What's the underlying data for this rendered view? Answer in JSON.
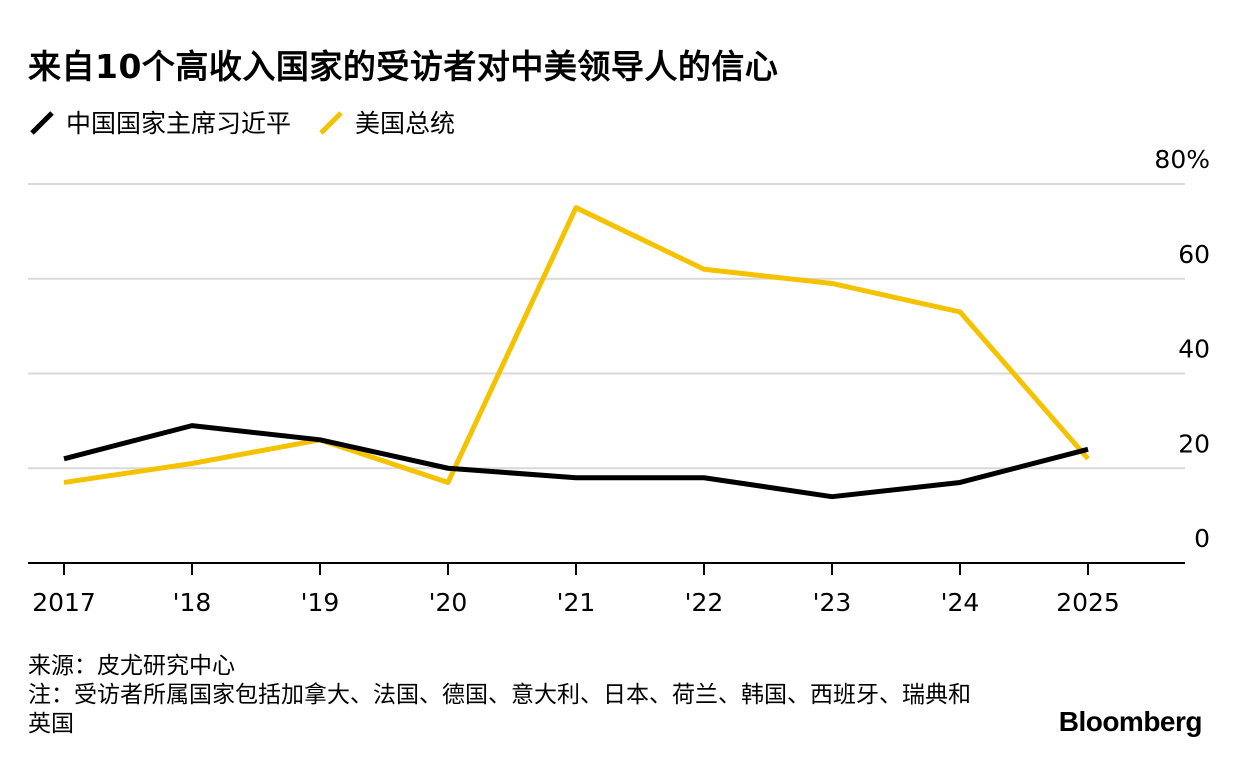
{
  "title": "来自10个高收入国家的受访者对中美领导人的信心",
  "source": "来源：皮尤研究中心",
  "note": "注：受访者所属国家包括加拿大、法国、德国、意大利、日本、荷兰、韩国、西班牙、瑞典和英国",
  "brand": "Bloomberg",
  "chart_data": {
    "type": "line",
    "x": [
      "2017",
      "'18",
      "'19",
      "'20",
      "'21",
      "'22",
      "'23",
      "'24",
      "2025"
    ],
    "ylim": [
      0,
      80
    ],
    "y_ticks": [
      "0",
      "20",
      "40",
      "60",
      "80%"
    ],
    "y_tick_values": [
      0,
      20,
      40,
      60,
      80
    ],
    "y_axis_side": "right",
    "grid": true,
    "legend_position": "top-left",
    "series": [
      {
        "name": "中国国家主席习近平",
        "color": "#000000",
        "values": [
          22,
          29,
          26,
          20,
          18,
          18,
          14,
          17,
          24
        ]
      },
      {
        "name": "美国总统",
        "color": "#F5C200",
        "values": [
          17,
          21,
          26,
          17,
          75,
          62,
          59,
          53,
          22
        ]
      }
    ]
  }
}
